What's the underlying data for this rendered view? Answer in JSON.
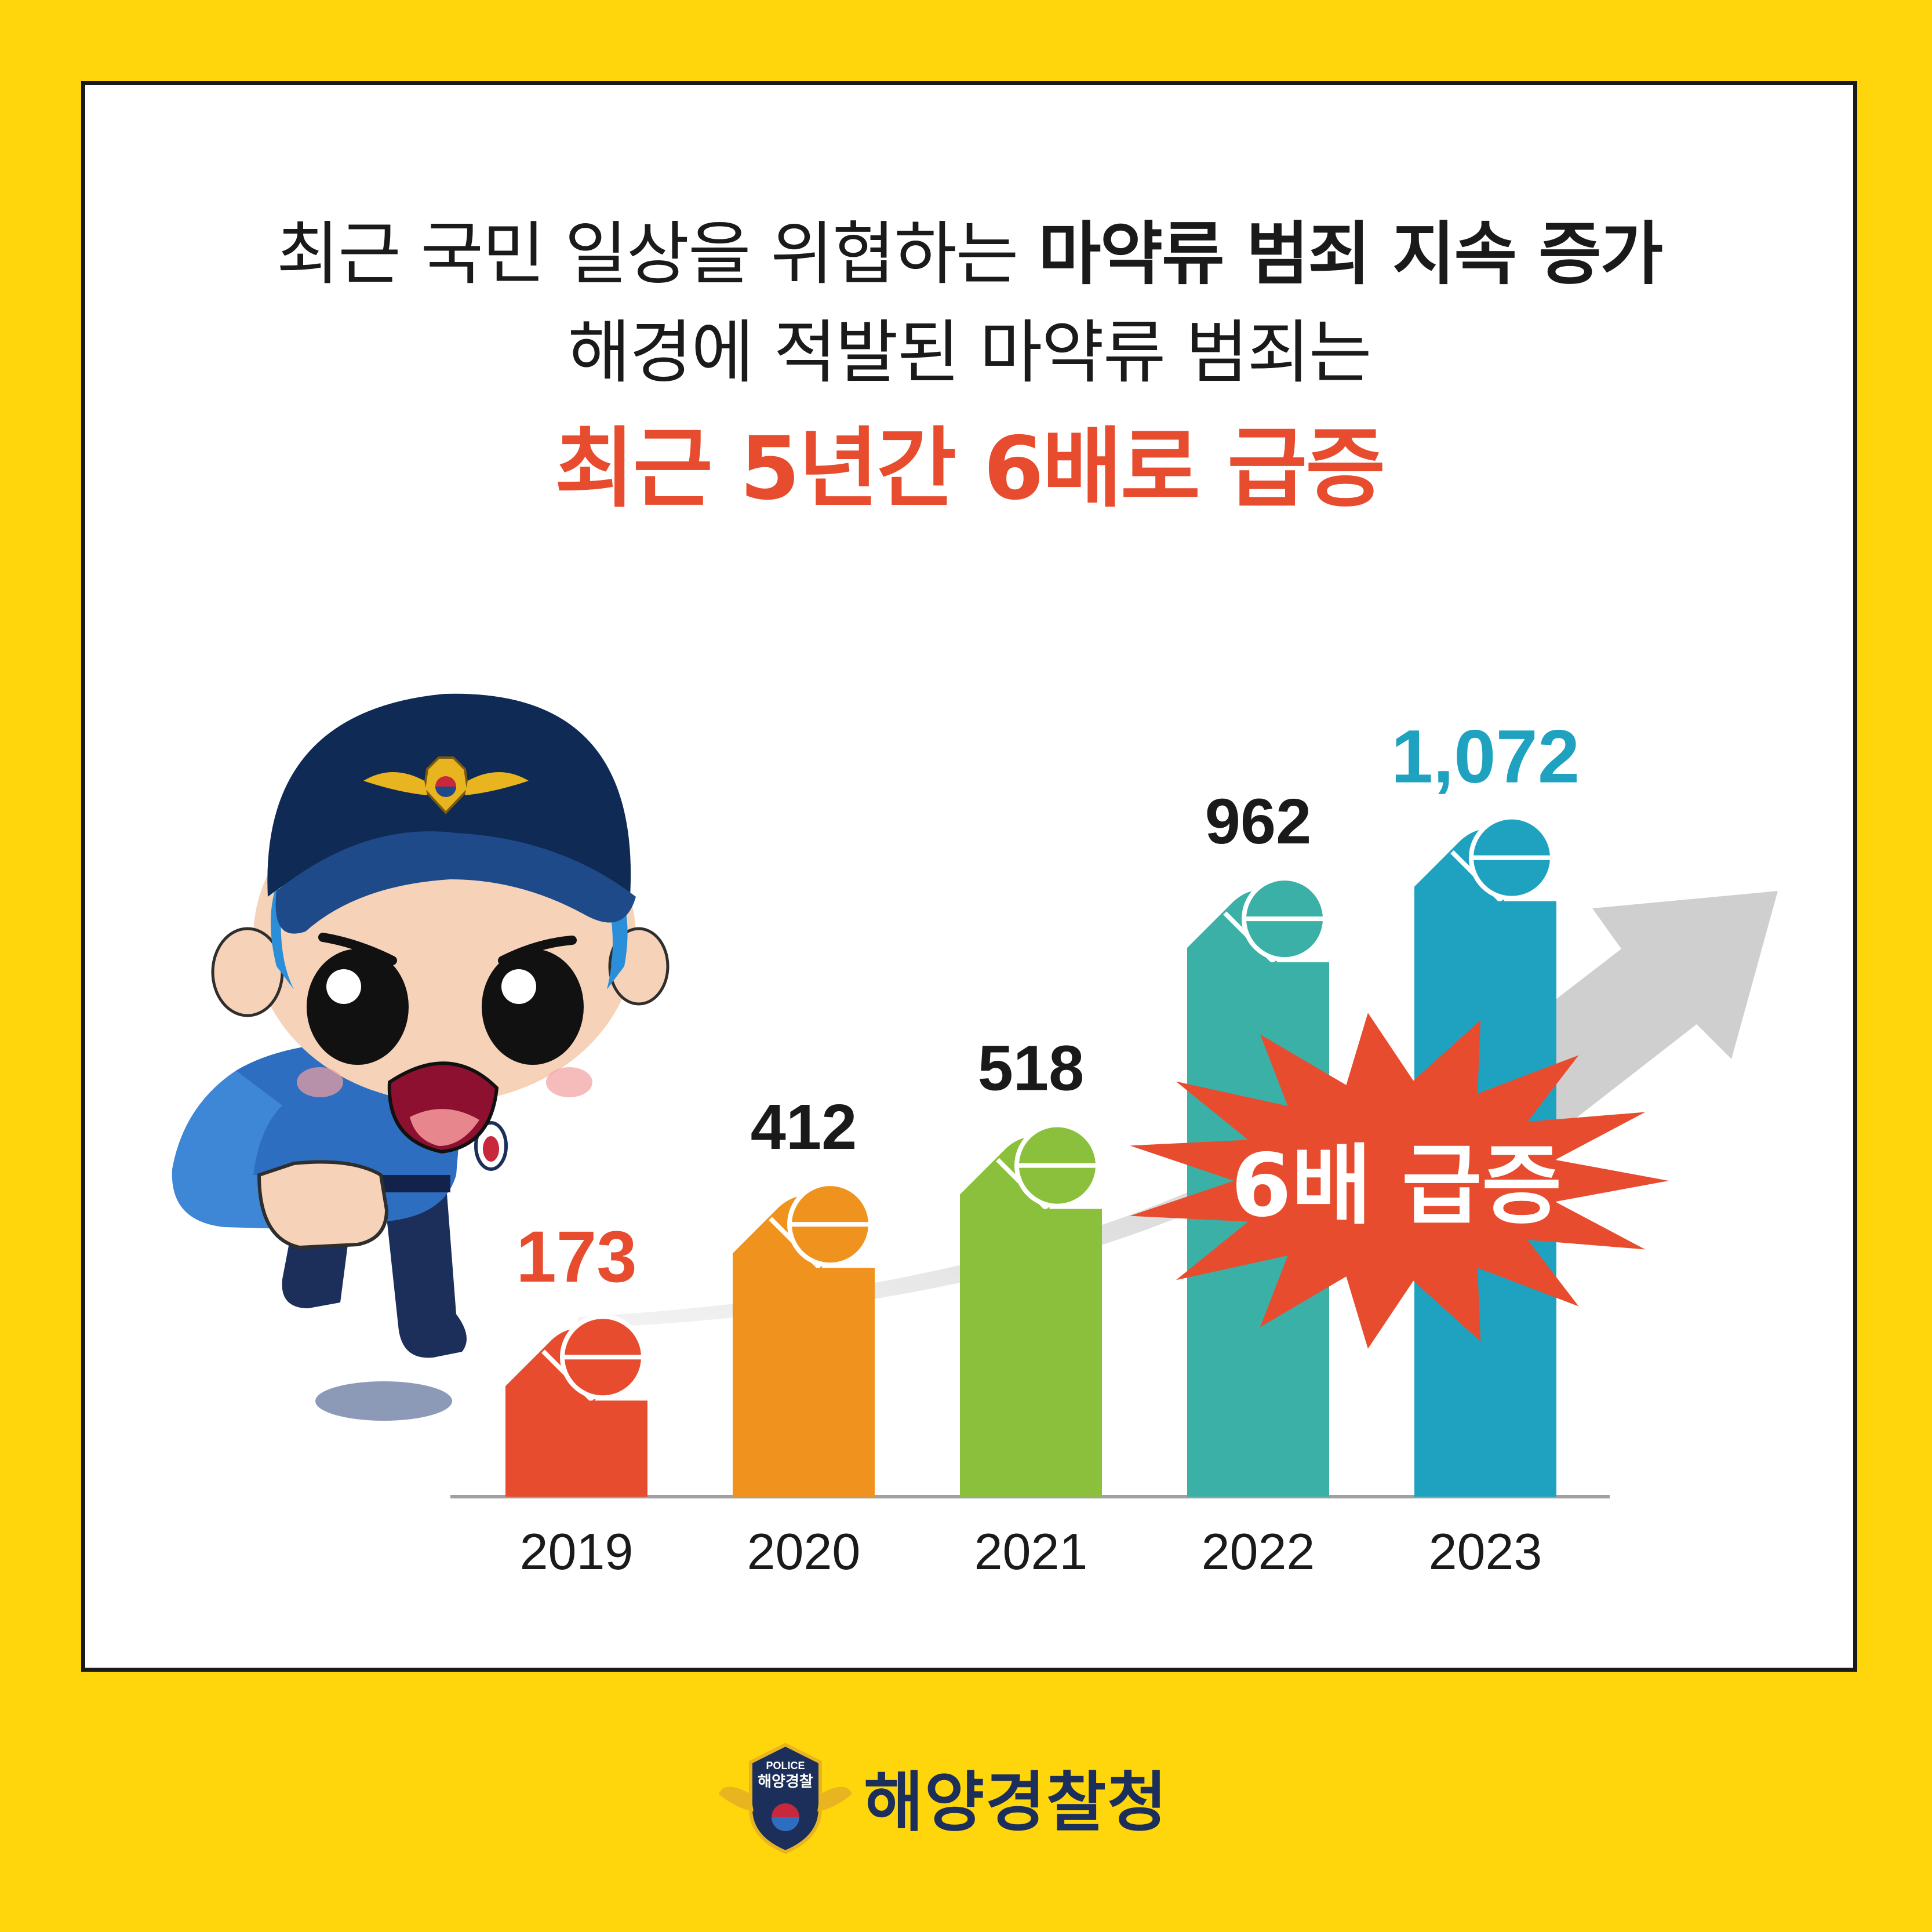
{
  "headline": {
    "line1_regular": "최근 국민 일상을 위협하는",
    "line1_bold": "마약류 범죄 지속 증가",
    "line2": "해경에 적발된 마약류 범죄는",
    "line3": "최근 5년간 6배로 급증"
  },
  "burst_label": "6배 급증",
  "footer": {
    "agency_name": "해양경찰청",
    "badge_top": "POLICE",
    "badge_name": "해양경찰"
  },
  "colors": {
    "background": "#FFD50C",
    "accent_red": "#E84C2E",
    "arrow": "#C8C8C8",
    "navy": "#1C2E5A"
  },
  "chart_data": {
    "type": "bar",
    "categories": [
      "2019",
      "2020",
      "2021",
      "2022",
      "2023"
    ],
    "values": [
      173,
      412,
      518,
      962,
      1072
    ],
    "value_labels": [
      "173",
      "412",
      "518",
      "962",
      "1,072"
    ],
    "bar_colors": [
      "#E84C2E",
      "#F0931E",
      "#8BC03C",
      "#3BB0A6",
      "#1FA2C0"
    ],
    "label_colors": [
      "#E84C2E",
      "#1A1A1A",
      "#1A1A1A",
      "#1A1A1A",
      "#1FA2C0"
    ],
    "ylim": [
      0,
      1200
    ],
    "grid": false,
    "legend": "none"
  }
}
